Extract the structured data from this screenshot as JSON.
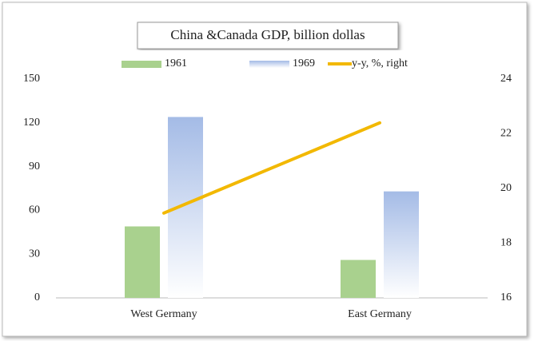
{
  "chart_data": {
    "type": "bar",
    "title": "China &Canada GDP, billion dollas",
    "categories": [
      "West Germany",
      "East Germany"
    ],
    "series": [
      {
        "name": "1961",
        "color": "#a9d18e",
        "values": [
          49,
          26
        ]
      },
      {
        "name": "1969",
        "color": "#a4bbe6",
        "values": [
          124,
          73
        ],
        "gradient": true
      },
      {
        "name": "y-y, %, right",
        "color": "#f2b800",
        "values": [
          19.1,
          22.4
        ],
        "axis": "y2",
        "type": "line"
      }
    ],
    "ylim": [
      0,
      150
    ],
    "yticks": [
      0,
      30,
      60,
      90,
      120,
      150
    ],
    "y2lim": [
      16,
      24
    ],
    "y2ticks": [
      16,
      18,
      20,
      22,
      24
    ],
    "grid": false,
    "legend": "top"
  }
}
